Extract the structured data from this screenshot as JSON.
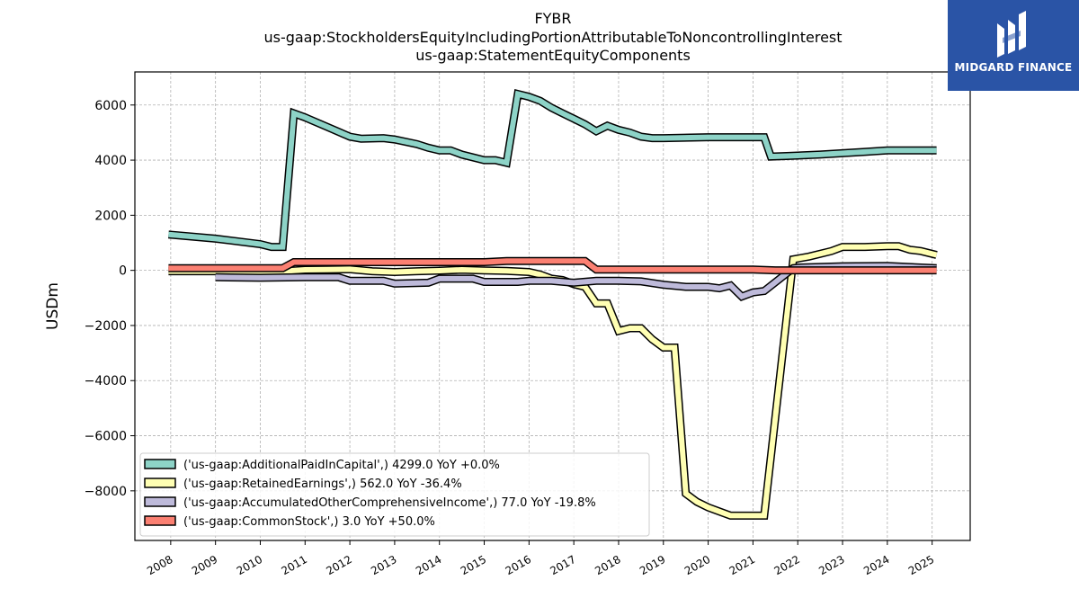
{
  "chart_data": {
    "type": "line",
    "title_lines": [
      "FYBR",
      "us-gaap:StockholdersEquityIncludingPortionAttributableToNoncontrollingInterest",
      "us-gaap:StatementEquityComponents"
    ],
    "ylabel": "USDm",
    "xlabel": "",
    "ylim": [
      -9800,
      7200
    ],
    "xlim": [
      2007.2,
      2025.85
    ],
    "yticks": [
      6000,
      4000,
      2000,
      0,
      -2000,
      -4000,
      -6000,
      -8000
    ],
    "ytick_labels": [
      "6000",
      "4000",
      "2000",
      "0",
      "−2000",
      "−4000",
      "−6000",
      "−8000"
    ],
    "xticks": [
      2008,
      2009,
      2010,
      2011,
      2012,
      2013,
      2014,
      2015,
      2016,
      2017,
      2018,
      2019,
      2020,
      2021,
      2022,
      2023,
      2024,
      2025
    ],
    "xtick_labels": [
      "2008",
      "2009",
      "2010",
      "2011",
      "2012",
      "2013",
      "2014",
      "2015",
      "2016",
      "2017",
      "2018",
      "2019",
      "2020",
      "2021",
      "2022",
      "2023",
      "2024",
      "2025"
    ],
    "grid": true,
    "legend_position": "lower-left",
    "series": [
      {
        "name": "('us-gaap:AdditionalPaidInCapital',) 4299.0 YoY +0.0%",
        "color": "#8dd3c7",
        "points": [
          [
            2007.95,
            1300
          ],
          [
            2009.0,
            1150
          ],
          [
            2010.0,
            950
          ],
          [
            2010.25,
            850
          ],
          [
            2010.5,
            850
          ],
          [
            2010.75,
            5700
          ],
          [
            2011.0,
            5550
          ],
          [
            2011.5,
            5200
          ],
          [
            2012.0,
            4850
          ],
          [
            2012.25,
            4780
          ],
          [
            2012.75,
            4800
          ],
          [
            2013.0,
            4750
          ],
          [
            2013.5,
            4580
          ],
          [
            2013.75,
            4450
          ],
          [
            2014.0,
            4350
          ],
          [
            2014.25,
            4350
          ],
          [
            2014.5,
            4200
          ],
          [
            2015.0,
            4000
          ],
          [
            2015.25,
            4000
          ],
          [
            2015.5,
            3900
          ],
          [
            2015.75,
            6400
          ],
          [
            2016.0,
            6300
          ],
          [
            2016.25,
            6150
          ],
          [
            2016.5,
            5900
          ],
          [
            2016.75,
            5700
          ],
          [
            2017.0,
            5500
          ],
          [
            2017.25,
            5300
          ],
          [
            2017.5,
            5050
          ],
          [
            2017.75,
            5250
          ],
          [
            2018.0,
            5100
          ],
          [
            2018.25,
            5000
          ],
          [
            2018.5,
            4850
          ],
          [
            2018.75,
            4800
          ],
          [
            2019.0,
            4800
          ],
          [
            2020.0,
            4830
          ],
          [
            2021.0,
            4830
          ],
          [
            2021.25,
            4830
          ],
          [
            2021.4,
            4130
          ],
          [
            2021.75,
            4150
          ],
          [
            2022.5,
            4200
          ],
          [
            2023.0,
            4250
          ],
          [
            2023.5,
            4300
          ],
          [
            2024.0,
            4350
          ],
          [
            2024.5,
            4350
          ],
          [
            2025.1,
            4350
          ]
        ]
      },
      {
        "name": "('us-gaap:RetainedEarnings',) 562.0 YoY -36.4%",
        "color": "#ffffb3",
        "points": [
          [
            2007.95,
            -30
          ],
          [
            2009.0,
            -30
          ],
          [
            2010.0,
            -30
          ],
          [
            2010.5,
            -30
          ],
          [
            2011.0,
            20
          ],
          [
            2011.5,
            30
          ],
          [
            2012.0,
            40
          ],
          [
            2012.5,
            -30
          ],
          [
            2013.0,
            -60
          ],
          [
            2013.5,
            -30
          ],
          [
            2014.0,
            -10
          ],
          [
            2014.5,
            20
          ],
          [
            2015.0,
            0
          ],
          [
            2015.5,
            -20
          ],
          [
            2016.0,
            -60
          ],
          [
            2016.25,
            -150
          ],
          [
            2016.5,
            -300
          ],
          [
            2016.75,
            -350
          ],
          [
            2017.0,
            -500
          ],
          [
            2017.25,
            -600
          ],
          [
            2017.5,
            -1200
          ],
          [
            2017.75,
            -1200
          ],
          [
            2018.0,
            -2200
          ],
          [
            2018.25,
            -2100
          ],
          [
            2018.5,
            -2100
          ],
          [
            2018.75,
            -2500
          ],
          [
            2019.0,
            -2800
          ],
          [
            2019.25,
            -2800
          ],
          [
            2019.5,
            -8100
          ],
          [
            2019.75,
            -8400
          ],
          [
            2020.0,
            -8600
          ],
          [
            2020.5,
            -8900
          ],
          [
            2021.0,
            -8900
          ],
          [
            2021.25,
            -8900
          ],
          [
            2021.9,
            400
          ],
          [
            2022.25,
            500
          ],
          [
            2022.75,
            700
          ],
          [
            2023.0,
            850
          ],
          [
            2023.5,
            850
          ],
          [
            2024.0,
            880
          ],
          [
            2024.25,
            880
          ],
          [
            2024.5,
            750
          ],
          [
            2024.75,
            700
          ],
          [
            2025.1,
            560
          ]
        ]
      },
      {
        "name": "('us-gaap:AccumulatedOtherComprehensiveIncome',) 77.0 YoY -19.8%",
        "color": "#bebada",
        "points": [
          [
            2009.0,
            -250
          ],
          [
            2010.0,
            -270
          ],
          [
            2011.0,
            -250
          ],
          [
            2011.75,
            -250
          ],
          [
            2012.0,
            -380
          ],
          [
            2012.75,
            -380
          ],
          [
            2013.0,
            -480
          ],
          [
            2013.75,
            -450
          ],
          [
            2014.0,
            -300
          ],
          [
            2014.5,
            -300
          ],
          [
            2014.75,
            -300
          ],
          [
            2015.0,
            -420
          ],
          [
            2015.75,
            -420
          ],
          [
            2016.0,
            -380
          ],
          [
            2016.5,
            -380
          ],
          [
            2017.0,
            -450
          ],
          [
            2017.5,
            -380
          ],
          [
            2018.0,
            -380
          ],
          [
            2018.5,
            -400
          ],
          [
            2019.0,
            -520
          ],
          [
            2019.5,
            -600
          ],
          [
            2020.0,
            -600
          ],
          [
            2020.25,
            -650
          ],
          [
            2020.5,
            -550
          ],
          [
            2020.75,
            -950
          ],
          [
            2021.0,
            -800
          ],
          [
            2021.25,
            -750
          ],
          [
            2021.9,
            80
          ],
          [
            2022.0,
            100
          ],
          [
            2023.0,
            150
          ],
          [
            2024.0,
            160
          ],
          [
            2025.1,
            77
          ]
        ]
      },
      {
        "name": "('us-gaap:CommonStock',) 3.0 YoY +50.0%",
        "color": "#fb8072",
        "points": [
          [
            2007.95,
            80
          ],
          [
            2009.0,
            80
          ],
          [
            2010.0,
            80
          ],
          [
            2010.5,
            80
          ],
          [
            2010.75,
            300
          ],
          [
            2011.0,
            300
          ],
          [
            2012.0,
            300
          ],
          [
            2013.0,
            300
          ],
          [
            2014.0,
            300
          ],
          [
            2015.0,
            300
          ],
          [
            2015.5,
            340
          ],
          [
            2016.0,
            340
          ],
          [
            2016.5,
            340
          ],
          [
            2017.0,
            340
          ],
          [
            2017.25,
            340
          ],
          [
            2017.5,
            30
          ],
          [
            2018.0,
            30
          ],
          [
            2019.0,
            30
          ],
          [
            2020.0,
            30
          ],
          [
            2021.0,
            30
          ],
          [
            2021.5,
            3
          ],
          [
            2022.0,
            3
          ],
          [
            2023.0,
            3
          ],
          [
            2024.0,
            3
          ],
          [
            2025.1,
            3
          ]
        ]
      }
    ]
  },
  "logo": {
    "text": "MIDGARD FINANCE",
    "icon": "midgard-logo-icon",
    "color": "#2a54a6"
  }
}
